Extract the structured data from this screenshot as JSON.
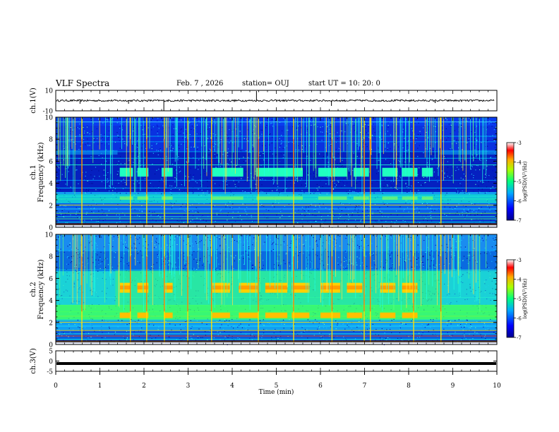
{
  "header": {
    "title": "VLF Spectra",
    "date": "Feb. 7 , 2026",
    "station": "station= OUJ",
    "start": "start UT =   10: 20: 0"
  },
  "chart_data": [
    {
      "type": "line",
      "panel": "ch1-waveform",
      "ylabel": "ch.1(V)",
      "ylim": [
        -10,
        10
      ],
      "yticks": [
        "10",
        "-10"
      ],
      "xlim": [
        0,
        10
      ],
      "series": [
        {
          "baseline": 0,
          "noise_amplitude": 1.5
        }
      ]
    },
    {
      "type": "heatmap",
      "panel": "ch1-spectrogram",
      "ylabel": "ch.1",
      "ylabel2": "Frequency (kHz)",
      "ylim": [
        0,
        10
      ],
      "yticks": [
        "0",
        "2",
        "4",
        "6",
        "8",
        "10"
      ],
      "xlim": [
        0,
        10
      ],
      "colorbar": {
        "label": "log(PSD)(V²/Hz)",
        "ticks": [
          "-3",
          "-4",
          "-5",
          "-6",
          "-7"
        ],
        "range": [
          -7,
          -3
        ]
      },
      "band_segments": [
        [
          1.45,
          1.75
        ],
        [
          1.85,
          2.1
        ],
        [
          2.4,
          2.65
        ],
        [
          3.55,
          4.25
        ],
        [
          4.55,
          5.6
        ],
        [
          5.95,
          6.6
        ],
        [
          6.75,
          7.1
        ],
        [
          7.4,
          7.75
        ],
        [
          7.85,
          8.2
        ],
        [
          8.3,
          8.55
        ]
      ]
    },
    {
      "type": "heatmap",
      "panel": "ch2-spectrogram",
      "ylabel": "ch.2",
      "ylabel2": "Frequency (kHz)",
      "ylim": [
        0,
        10
      ],
      "yticks": [
        "0",
        "2",
        "4",
        "6",
        "8",
        "10"
      ],
      "xlim": [
        0,
        10
      ],
      "colorbar": {
        "label": "log(PSD)(V²/Hz)",
        "ticks": [
          "-3",
          "-4",
          "-5",
          "-6",
          "-7"
        ],
        "range": [
          -7,
          -3
        ]
      },
      "band_segments": [
        [
          1.45,
          1.7
        ],
        [
          1.85,
          2.1
        ],
        [
          2.45,
          2.65
        ],
        [
          3.55,
          3.95
        ],
        [
          4.15,
          4.6
        ],
        [
          4.75,
          5.25
        ],
        [
          5.35,
          5.75
        ],
        [
          6.0,
          6.45
        ],
        [
          6.6,
          6.95
        ],
        [
          7.35,
          7.7
        ],
        [
          7.85,
          8.2
        ]
      ]
    },
    {
      "type": "line",
      "panel": "ch3-waveform",
      "ylabel": "ch.3(V)",
      "ylim": [
        -5,
        5
      ],
      "yticks": [
        "5",
        "0",
        "-5"
      ],
      "xlim": [
        0,
        10
      ],
      "series": [
        {
          "baseline": -1.2
        }
      ]
    }
  ],
  "xaxis": {
    "label": "Time (min)",
    "ticks": [
      "0",
      "1",
      "2",
      "3",
      "4",
      "5",
      "6",
      "7",
      "8",
      "9",
      "10"
    ]
  }
}
